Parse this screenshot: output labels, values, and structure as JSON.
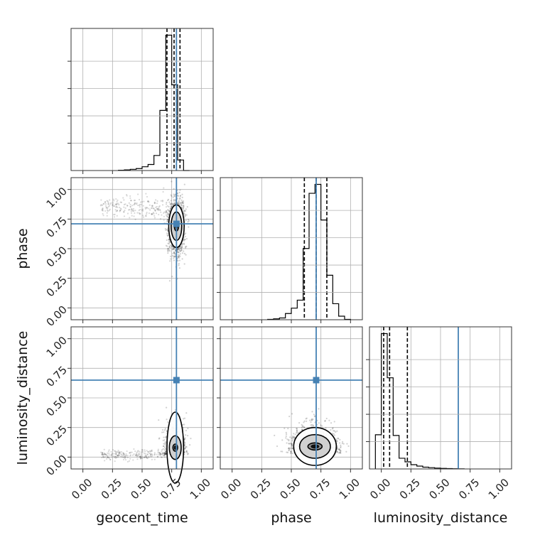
{
  "chart_data": {
    "type": "corner",
    "parameters": [
      "geocent_time",
      "phase",
      "luminosity_distance"
    ],
    "axis_range": [
      -0.1,
      1.1
    ],
    "tick_values": [
      0.0,
      0.25,
      0.5,
      0.75,
      1.0
    ],
    "tick_labels": [
      "0.00",
      "0.25",
      "0.50",
      "0.75",
      "1.00"
    ],
    "grid": true,
    "injection_values": {
      "geocent_time": 0.79,
      "phase": 0.71,
      "luminosity_distance": 0.65
    },
    "injection_color": "#4682b4",
    "histograms": [
      {
        "parameter": "geocent_time",
        "bin_edges": [
          0.3,
          0.35,
          0.4,
          0.45,
          0.5,
          0.55,
          0.6,
          0.65,
          0.7,
          0.75,
          0.8,
          0.85,
          0.9
        ],
        "counts": [
          0.2,
          0.4,
          0.8,
          1.3,
          2.5,
          4.0,
          10.0,
          40.0,
          90.0,
          57.0,
          7.0,
          0.0
        ],
        "quantiles": [
          0.71,
          0.77,
          0.82
        ]
      },
      {
        "parameter": "phase",
        "bin_edges": [
          0.3,
          0.35,
          0.4,
          0.45,
          0.5,
          0.55,
          0.6,
          0.65,
          0.7,
          0.75,
          0.8,
          0.85,
          0.9,
          0.95,
          1.0
        ],
        "counts": [
          0.2,
          0.5,
          1.0,
          3.5,
          6.5,
          11.0,
          40.0,
          71.0,
          76.0,
          56.0,
          25.0,
          9.0,
          2.0,
          0.2
        ],
        "quantiles": [
          0.61,
          0.71,
          0.8
        ]
      },
      {
        "parameter": "luminosity_distance",
        "bin_edges": [
          -0.05,
          0.0,
          0.05,
          0.1,
          0.15,
          0.2,
          0.25,
          0.3,
          0.35,
          0.4,
          0.45,
          0.5,
          0.55,
          0.6,
          0.65,
          0.7
        ],
        "counts": [
          48.0,
          190.0,
          128.0,
          47.0,
          15.0,
          10.0,
          6.0,
          4.0,
          2.5,
          1.8,
          1.2,
          0.8,
          0.5,
          0.3,
          0.1
        ],
        "quantiles": [
          0.02,
          0.07,
          0.22
        ]
      }
    ],
    "scatter_2d": [
      {
        "x": "geocent_time",
        "y": "phase",
        "center": [
          0.79,
          0.69
        ],
        "spread": [
          0.035,
          0.11
        ],
        "tail": {
          "x_from": 0.15,
          "x_to": 0.72,
          "y_center": 0.85,
          "y_spread": 0.05
        },
        "contours": [
          {
            "level": 1,
            "rx": 0.018,
            "ry": 0.04
          },
          {
            "level": 2,
            "rx": 0.045,
            "ry": 0.12
          },
          {
            "level": 3,
            "rx": 0.065,
            "ry": 0.18
          }
        ]
      },
      {
        "x": "geocent_time",
        "y": "luminosity_distance",
        "center": [
          0.78,
          0.08
        ],
        "spread": [
          0.04,
          0.11
        ],
        "tail": {
          "x_from": 0.15,
          "x_to": 0.72,
          "y_center": 0.02,
          "y_spread": 0.02
        },
        "contours": [
          {
            "level": 1,
            "rx": 0.02,
            "ry": 0.03
          },
          {
            "level": 2,
            "rx": 0.05,
            "ry": 0.1
          },
          {
            "level": 3,
            "rx": 0.07,
            "ry": 0.3
          }
        ]
      },
      {
        "x": "phase",
        "y": "luminosity_distance",
        "center": [
          0.7,
          0.09
        ],
        "spread": [
          0.1,
          0.1
        ],
        "tail": null,
        "contours": [
          {
            "level": 1,
            "rx": 0.06,
            "ry": 0.03
          },
          {
            "level": 2,
            "rx": 0.13,
            "ry": 0.1
          },
          {
            "level": 3,
            "rx": 0.18,
            "ry": 0.16
          }
        ]
      }
    ]
  }
}
